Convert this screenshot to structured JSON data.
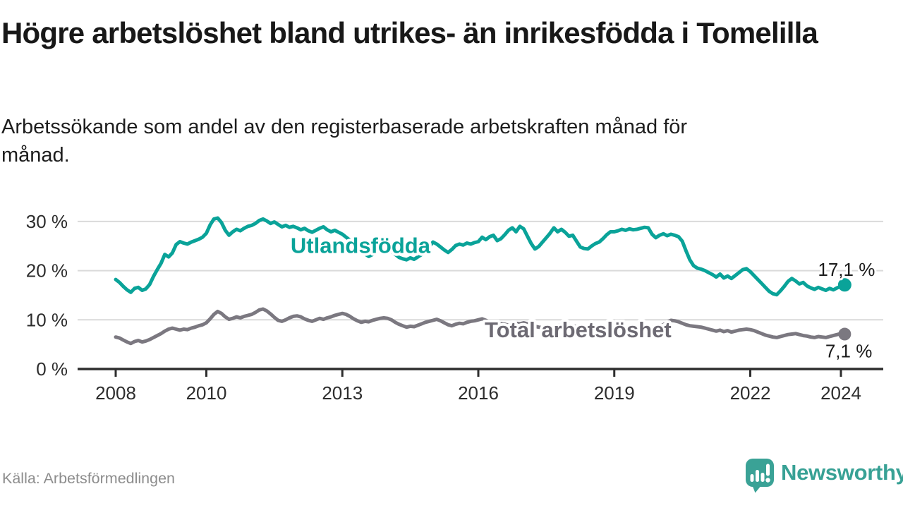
{
  "header": {
    "title": "Högre arbetslöshet bland utrikes- än inrikesfödda i Tomelilla",
    "subtitle": "Arbetssökande som andel av den registerbaserade arbetskraften månad för månad."
  },
  "footer": {
    "source": "Källa: Arbetsförmedlingen",
    "brand": "Newsworthy"
  },
  "colors": {
    "accent_teal": "#0aa399",
    "series_gray": "#7b7880",
    "grid": "#dadada",
    "axis": "#2e2e2e",
    "tick_label": "#2d2d2d",
    "value_label": "#1b1b1b",
    "logo_teal": "#3aa296"
  },
  "chart_data": {
    "type": "line",
    "unit": "%",
    "frequency": "monthly",
    "x_start": "2008-01",
    "x_end": "2024-02",
    "grid": "horizontal",
    "ylim": [
      0,
      31.5
    ],
    "y_ticks": [
      {
        "value": 0,
        "label": "0 %"
      },
      {
        "value": 10,
        "label": "10 %"
      },
      {
        "value": 20,
        "label": "20 %"
      },
      {
        "value": 30,
        "label": "30 %"
      }
    ],
    "x_ticks": [
      2008,
      2010,
      2013,
      2016,
      2019,
      2022,
      2024
    ],
    "series": [
      {
        "name": "Utlandsfödda",
        "color": "#0aa399",
        "label_color": "#0aa399",
        "label_anchor": {
          "year": 2013.4,
          "value": 25.2
        },
        "end_label": "17,1 %",
        "end_value": 17.1,
        "values": [
          18.2,
          17.6,
          16.8,
          16.1,
          15.6,
          16.4,
          16.6,
          16.0,
          16.3,
          17.2,
          18.8,
          20.2,
          21.5,
          23.3,
          22.8,
          23.6,
          25.3,
          25.9,
          25.6,
          25.4,
          25.8,
          26.1,
          26.4,
          26.8,
          27.6,
          29.3,
          30.5,
          30.7,
          29.8,
          28.2,
          27.2,
          27.9,
          28.4,
          28.1,
          28.6,
          29.0,
          29.2,
          29.6,
          30.2,
          30.5,
          30.1,
          29.6,
          29.9,
          29.4,
          28.9,
          29.2,
          28.8,
          29.0,
          28.7,
          28.3,
          28.6,
          28.1,
          27.8,
          28.2,
          28.6,
          28.9,
          28.3,
          27.9,
          28.2,
          27.8,
          27.4,
          26.8,
          26.2,
          25.5,
          24.9,
          24.2,
          23.4,
          22.9,
          23.3,
          23.8,
          24.3,
          24.6,
          24.4,
          23.9,
          23.3,
          22.7,
          22.4,
          22.2,
          22.6,
          22.3,
          22.8,
          23.3,
          23.9,
          24.9,
          25.8,
          25.4,
          24.8,
          24.2,
          23.7,
          24.3,
          25.1,
          25.4,
          25.2,
          25.6,
          25.4,
          25.7,
          25.9,
          26.8,
          26.3,
          26.9,
          27.2,
          26.1,
          26.5,
          27.3,
          28.2,
          28.7,
          27.9,
          29.0,
          28.5,
          27.0,
          25.5,
          24.4,
          24.9,
          25.8,
          26.7,
          27.6,
          28.7,
          27.9,
          28.4,
          27.8,
          27.0,
          27.2,
          26.0,
          24.8,
          24.5,
          24.4,
          25.0,
          25.5,
          25.8,
          26.5,
          27.3,
          27.9,
          27.9,
          28.1,
          28.4,
          28.2,
          28.5,
          28.3,
          28.4,
          28.6,
          28.8,
          28.7,
          27.4,
          26.7,
          27.2,
          27.5,
          27.1,
          27.4,
          27.2,
          26.9,
          26.0,
          24.0,
          22.2,
          21.0,
          20.5,
          20.3,
          20.0,
          19.6,
          19.2,
          18.7,
          19.3,
          18.5,
          18.9,
          18.4,
          19.0,
          19.6,
          20.2,
          20.4,
          19.8,
          19.0,
          18.2,
          17.4,
          16.6,
          15.8,
          15.3,
          15.1,
          15.9,
          16.8,
          17.8,
          18.4,
          17.9,
          17.3,
          17.6,
          16.9,
          16.5,
          16.2,
          16.6,
          16.3,
          16.0,
          16.4,
          16.1,
          16.5,
          16.8,
          17.1
        ]
      },
      {
        "name": "Total arbetslöshet",
        "color": "#7b7880",
        "label_color": "#6d6a73",
        "label_anchor": {
          "year": 2018.2,
          "value": 8.0
        },
        "end_label": "7,1 %",
        "end_value": 7.1,
        "values": [
          6.5,
          6.3,
          5.9,
          5.5,
          5.2,
          5.6,
          5.8,
          5.5,
          5.7,
          6.0,
          6.4,
          6.8,
          7.2,
          7.7,
          8.1,
          8.3,
          8.1,
          7.9,
          8.1,
          8.0,
          8.3,
          8.5,
          8.8,
          9.0,
          9.4,
          10.2,
          11.1,
          11.7,
          11.3,
          10.6,
          10.1,
          10.3,
          10.6,
          10.4,
          10.7,
          10.9,
          11.1,
          11.5,
          12.0,
          12.2,
          11.8,
          11.2,
          10.5,
          9.9,
          9.7,
          10.0,
          10.4,
          10.7,
          10.8,
          10.6,
          10.2,
          9.9,
          9.7,
          10.0,
          10.3,
          10.1,
          10.4,
          10.6,
          10.9,
          11.1,
          11.3,
          11.1,
          10.7,
          10.2,
          9.8,
          9.5,
          9.7,
          9.6,
          9.9,
          10.1,
          10.3,
          10.4,
          10.3,
          10.0,
          9.5,
          9.1,
          8.8,
          8.5,
          8.7,
          8.6,
          8.9,
          9.2,
          9.5,
          9.7,
          9.9,
          10.1,
          9.8,
          9.4,
          9.0,
          8.8,
          9.1,
          9.3,
          9.2,
          9.5,
          9.7,
          9.8,
          10.0,
          10.2,
          9.9,
          9.5,
          9.2,
          9.0,
          9.2,
          9.1,
          8.9,
          9.1,
          9.3,
          9.2,
          9.4,
          9.2,
          8.9,
          8.7,
          8.5,
          8.4,
          8.6,
          8.5,
          8.7,
          8.9,
          9.0,
          9.1,
          9.0,
          8.8,
          8.6,
          8.4,
          8.2,
          8.0,
          8.2,
          8.1,
          8.3,
          8.5,
          8.6,
          8.7,
          8.8,
          8.7,
          8.5,
          8.4,
          8.3,
          8.2,
          8.4,
          8.5,
          8.7,
          8.6,
          8.5,
          8.6,
          8.8,
          9.0,
          9.5,
          9.9,
          9.8,
          9.6,
          9.3,
          9.0,
          8.8,
          8.7,
          8.6,
          8.5,
          8.3,
          8.1,
          7.9,
          7.7,
          7.9,
          7.6,
          7.8,
          7.5,
          7.7,
          7.9,
          8.0,
          8.1,
          8.0,
          7.8,
          7.5,
          7.2,
          6.9,
          6.7,
          6.5,
          6.4,
          6.6,
          6.8,
          7.0,
          7.1,
          7.2,
          7.0,
          6.8,
          6.7,
          6.5,
          6.4,
          6.6,
          6.5,
          6.4,
          6.6,
          6.8,
          7.0,
          7.2,
          7.1
        ]
      }
    ]
  }
}
